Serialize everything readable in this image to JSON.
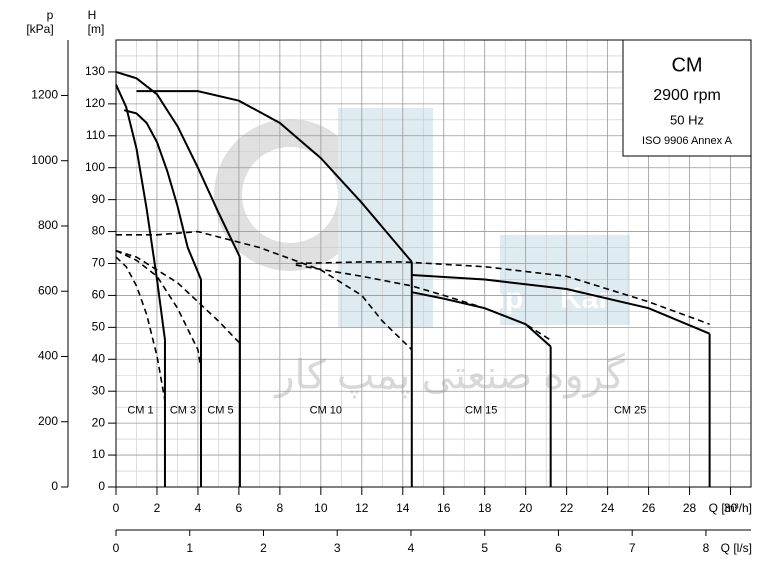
{
  "chart_data": {
    "type": "line",
    "x_label": "Q [m³/h]",
    "x2_label": "Q [l/s]",
    "y_label": "H",
    "y_unit": "[m]",
    "y2_label": "p",
    "y2_unit": "[kPa]",
    "xlim": [
      0,
      31
    ],
    "xticks": [
      0,
      2,
      4,
      6,
      8,
      10,
      12,
      14,
      16,
      18,
      20,
      22,
      24,
      26,
      28,
      30
    ],
    "x2lim": [
      0,
      8.611
    ],
    "x2ticks": [
      0,
      1,
      2,
      3,
      4,
      5,
      6,
      7,
      8
    ],
    "ylim": [
      0,
      140
    ],
    "yticks": [
      0,
      10,
      20,
      30,
      40,
      50,
      60,
      70,
      80,
      90,
      100,
      110,
      120,
      130
    ],
    "y2lim": [
      0,
      1370
    ],
    "y2ticks": [
      0,
      200,
      400,
      600,
      800,
      1000,
      1200
    ],
    "grid": true,
    "info": [
      "CM",
      "2900 rpm",
      "50 Hz",
      "ISO 9906 Annex A"
    ],
    "watermark": [
      "Pump",
      "Kar",
      "گروه صنعتی پمپ کار"
    ],
    "color": "#000000",
    "pumps": [
      {
        "name": "CM 1",
        "curves": [
          {
            "style": "solid",
            "x": [
              0,
              0.5,
              1,
              1.5,
              2,
              2.39
            ],
            "values": [
              126,
              119,
              106,
              87,
              65,
              46
            ]
          },
          {
            "style": "dashed",
            "x": [
              0,
              0.5,
              1,
              1.5,
              2,
              2.39
            ],
            "values": [
              72,
              69,
              63,
              54,
              41,
              27
            ]
          }
        ]
      },
      {
        "name": "CM 3",
        "curves": [
          {
            "style": "solid",
            "x": [
              0.4,
              1,
              1.5,
              2,
              2.5,
              3,
              3.5,
              4.15
            ],
            "values": [
              118,
              117,
              114,
              108,
              99,
              88,
              75,
              65
            ]
          },
          {
            "style": "dashed",
            "x": [
              0,
              1,
              2,
              3,
              4,
              4.15
            ],
            "values": [
              74,
              71,
              66,
              56,
              43,
              37
            ]
          }
        ]
      },
      {
        "name": "CM 5",
        "curves": [
          {
            "style": "solid",
            "x": [
              0,
              1,
              2,
              3,
              4,
              5,
              6.05
            ],
            "values": [
              130,
              128,
              123,
              113,
              100,
              86,
              72
            ]
          },
          {
            "style": "dashed",
            "x": [
              0,
              1,
              2,
              3,
              4,
              5,
              6.05
            ],
            "values": [
              74,
              72,
              68,
              64,
              58,
              52,
              45
            ]
          }
        ]
      },
      {
        "name": "CM 10",
        "curves": [
          {
            "style": "solid",
            "x": [
              1,
              3,
              4,
              6,
              8,
              10,
              12,
              14.44
            ],
            "values": [
              124,
              124,
              124,
              121,
              114,
              103,
              89,
              70.5
            ]
          },
          {
            "style": "dashed",
            "x": [
              0,
              2,
              4,
              7,
              10,
              12,
              13,
              14.44
            ],
            "values": [
              79,
              79,
              80,
              75,
              68,
              60,
              52,
              43
            ]
          }
        ]
      },
      {
        "name": "CM 15",
        "curves": [
          {
            "style": "solid",
            "x": [
              14.44,
              16,
              18,
              20,
              21.22
            ],
            "values": [
              61,
              59,
              56,
              51,
              44
            ]
          },
          {
            "style": "dashed",
            "x": [
              8.78,
              12,
              14.44,
              16,
              18,
              20,
              21.22
            ],
            "values": [
              69.5,
              66,
              63,
              60,
              56,
              51,
              46
            ]
          }
        ]
      },
      {
        "name": "CM 25",
        "curves": [
          {
            "style": "solid",
            "x": [
              14.44,
              18,
              22,
              26,
              28.98
            ],
            "values": [
              66.4,
              65,
              62,
              56,
              48
            ]
          },
          {
            "style": "dashed",
            "x": [
              8.78,
              12,
              14,
              18,
              22,
              26,
              28.98
            ],
            "values": [
              70,
              70.5,
              70.5,
              69,
              66,
              58,
              51
            ]
          }
        ]
      }
    ]
  }
}
